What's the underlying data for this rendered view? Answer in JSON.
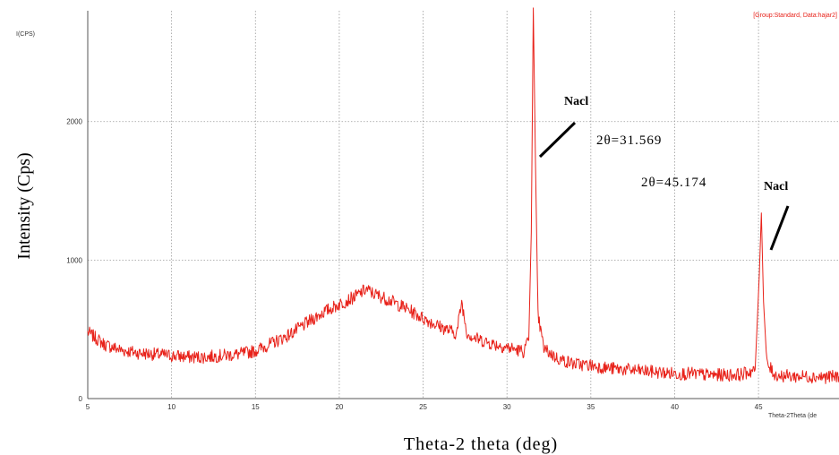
{
  "chart_data": {
    "type": "line",
    "header_note": "[Group:Standard, Data:hajar2]",
    "y_unit_label": "I(CPS)",
    "ylabel": "Intensity (Cps)",
    "xlabel": "Theta-2 theta (deg)",
    "x_axis_caption": "Theta-2Theta (de",
    "xlim": [
      5,
      49.8
    ],
    "ylim": [
      0,
      2800
    ],
    "x_ticks": [
      "5",
      "10",
      "15",
      "20",
      "25",
      "30",
      "35",
      "40",
      "45"
    ],
    "y_ticks": [
      "0",
      "1000",
      "2000"
    ],
    "grid": true,
    "series": [
      {
        "color": "#e8221a",
        "x": [
          5.0,
          6.0,
          7.0,
          8.0,
          9.0,
          10.0,
          11.0,
          12.0,
          13.0,
          14.0,
          15.0,
          16.0,
          17.0,
          18.0,
          19.0,
          20.0,
          21.0,
          21.6,
          22.0,
          23.0,
          24.0,
          25.0,
          26.0,
          27.0,
          27.3,
          27.6,
          28.0,
          29.0,
          30.0,
          31.0,
          31.3,
          31.45,
          31.57,
          31.7,
          31.85,
          32.2,
          33.0,
          34.0,
          35.0,
          36.0,
          37.0,
          38.0,
          39.0,
          40.0,
          41.0,
          42.0,
          43.0,
          44.0,
          44.8,
          45.05,
          45.17,
          45.3,
          45.5,
          46.0,
          47.0,
          48.0,
          49.0,
          49.8
        ],
        "y": [
          480,
          390,
          350,
          330,
          320,
          310,
          300,
          300,
          310,
          320,
          345,
          400,
          460,
          540,
          620,
          680,
          740,
          790,
          760,
          710,
          650,
          580,
          520,
          470,
          700,
          480,
          440,
          400,
          370,
          340,
          420,
          1200,
          2820,
          1700,
          600,
          360,
          290,
          250,
          240,
          220,
          210,
          200,
          190,
          180,
          180,
          170,
          170,
          175,
          210,
          900,
          1340,
          700,
          250,
          170,
          160,
          160,
          155,
          160
        ]
      }
    ],
    "annotations": [
      {
        "label": "Nacl",
        "value_text": "2θ=31.569",
        "x": 31.569
      },
      {
        "label": "Nacl",
        "value_text": "2θ=45.174",
        "x": 45.174
      }
    ]
  }
}
